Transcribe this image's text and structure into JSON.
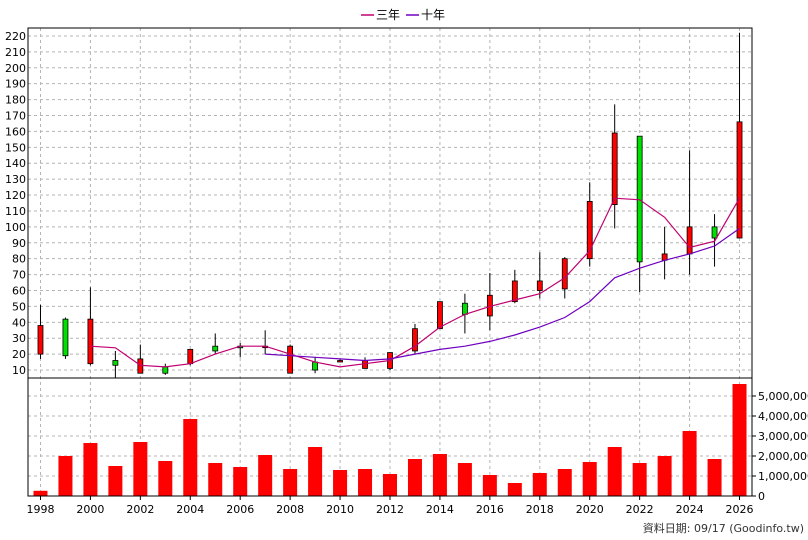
{
  "legend": [
    {
      "name": "三年",
      "color": "#c00070"
    },
    {
      "name": "十年",
      "color": "#7000c0"
    }
  ],
  "source_label": "資料日期: 09/17  (Goodinfo.tw)",
  "chart_data": {
    "type": "candlestick+bar",
    "x_ticks": [
      "1998",
      "2000",
      "2002",
      "2004",
      "2006",
      "2008",
      "2010",
      "2012",
      "2014",
      "2016",
      "2018",
      "2020",
      "2022",
      "2024",
      "2026"
    ],
    "price_axis": {
      "ylim": [
        5,
        225
      ],
      "ticks": [
        10,
        20,
        30,
        40,
        50,
        60,
        70,
        80,
        90,
        100,
        110,
        120,
        130,
        140,
        150,
        160,
        170,
        180,
        190,
        200,
        210,
        220
      ],
      "side": "left"
    },
    "volume_axis": {
      "ylim": [
        0,
        5900000
      ],
      "ticks": [
        0,
        1000000,
        2000000,
        3000000,
        4000000,
        5000000
      ],
      "tick_labels": [
        "0",
        "1,000,000",
        "2,000,000",
        "3,000,000",
        "4,000,000",
        "5,000,000"
      ],
      "side": "right"
    },
    "grid": true,
    "candles": [
      {
        "year": 1998,
        "open": 20,
        "high": 51,
        "low": 17,
        "close": 38
      },
      {
        "year": 1999,
        "open": 42,
        "high": 43,
        "low": 17,
        "close": 19
      },
      {
        "year": 2000,
        "open": 14,
        "high": 62,
        "low": 13,
        "close": 42
      },
      {
        "year": 2001,
        "open": 16,
        "high": 22,
        "low": 5,
        "close": 13
      },
      {
        "year": 2002,
        "open": 8,
        "high": 26,
        "low": 8,
        "close": 17
      },
      {
        "year": 2003,
        "open": 12,
        "high": 14,
        "low": 7,
        "close": 8
      },
      {
        "year": 2004,
        "open": 14,
        "high": 23,
        "low": 13,
        "close": 23
      },
      {
        "year": 2005,
        "open": 25,
        "high": 33,
        "low": 20,
        "close": 22
      },
      {
        "year": 2006,
        "open": 25,
        "high": 27,
        "low": 18,
        "close": 24
      },
      {
        "year": 2007,
        "open": 25,
        "high": 35,
        "low": 20,
        "close": 25
      },
      {
        "year": 2008,
        "open": 8,
        "high": 26,
        "low": 8,
        "close": 25
      },
      {
        "year": 2009,
        "open": 15,
        "high": 18,
        "low": 8,
        "close": 10
      },
      {
        "year": 2010,
        "open": 16,
        "high": 17,
        "low": 15,
        "close": 16
      },
      {
        "year": 2011,
        "open": 11,
        "high": 18,
        "low": 11,
        "close": 16
      },
      {
        "year": 2012,
        "open": 11,
        "high": 21,
        "low": 10,
        "close": 21
      },
      {
        "year": 2013,
        "open": 22,
        "high": 39,
        "low": 20,
        "close": 36
      },
      {
        "year": 2014,
        "open": 36,
        "high": 53,
        "low": 36,
        "close": 53
      },
      {
        "year": 2015,
        "open": 52,
        "high": 58,
        "low": 33,
        "close": 45
      },
      {
        "year": 2016,
        "open": 44,
        "high": 71,
        "low": 35,
        "close": 57
      },
      {
        "year": 2017,
        "open": 53,
        "high": 73,
        "low": 52,
        "close": 66
      },
      {
        "year": 2018,
        "open": 60,
        "high": 84,
        "low": 55,
        "close": 66
      },
      {
        "year": 2019,
        "open": 61,
        "high": 81,
        "low": 55,
        "close": 80
      },
      {
        "year": 2020,
        "open": 80,
        "high": 128,
        "low": 75,
        "close": 116
      },
      {
        "year": 2021,
        "open": 114,
        "high": 177,
        "low": 99,
        "close": 159
      },
      {
        "year": 2022,
        "open": 157,
        "high": 157,
        "low": 59,
        "close": 78
      },
      {
        "year": 2023,
        "open": 79,
        "high": 100,
        "low": 67,
        "close": 83
      },
      {
        "year": 2024,
        "open": 83,
        "high": 148,
        "low": 70,
        "close": 100
      },
      {
        "year": 2025,
        "open": 100,
        "high": 108,
        "low": 75,
        "close": 93
      },
      {
        "year": 2026,
        "open": 93,
        "high": 222,
        "low": 93,
        "close": 166
      }
    ],
    "volume": [
      {
        "year": 1998,
        "value": 260000
      },
      {
        "year": 1999,
        "value": 2000000
      },
      {
        "year": 2000,
        "value": 2650000
      },
      {
        "year": 2001,
        "value": 1500000
      },
      {
        "year": 2002,
        "value": 2700000
      },
      {
        "year": 2003,
        "value": 1750000
      },
      {
        "year": 2004,
        "value": 3850000
      },
      {
        "year": 2005,
        "value": 1650000
      },
      {
        "year": 2006,
        "value": 1450000
      },
      {
        "year": 2007,
        "value": 2050000
      },
      {
        "year": 2008,
        "value": 1350000
      },
      {
        "year": 2009,
        "value": 2450000
      },
      {
        "year": 2010,
        "value": 1300000
      },
      {
        "year": 2011,
        "value": 1350000
      },
      {
        "year": 2012,
        "value": 1100000
      },
      {
        "year": 2013,
        "value": 1850000
      },
      {
        "year": 2014,
        "value": 2100000
      },
      {
        "year": 2015,
        "value": 1650000
      },
      {
        "year": 2016,
        "value": 1050000
      },
      {
        "year": 2017,
        "value": 650000
      },
      {
        "year": 2018,
        "value": 1150000
      },
      {
        "year": 2019,
        "value": 1350000
      },
      {
        "year": 2020,
        "value": 1700000
      },
      {
        "year": 2021,
        "value": 2450000
      },
      {
        "year": 2022,
        "value": 1650000
      },
      {
        "year": 2023,
        "value": 2000000
      },
      {
        "year": 2024,
        "value": 3250000
      },
      {
        "year": 2025,
        "value": 1850000
      },
      {
        "year": 2026,
        "value": 5600000
      }
    ],
    "series": [
      {
        "name": "三年",
        "color": "#c00070",
        "points": [
          [
            2000,
            25
          ],
          [
            2001,
            24
          ],
          [
            2002,
            13
          ],
          [
            2003,
            12
          ],
          [
            2004,
            14
          ],
          [
            2005,
            20
          ],
          [
            2006,
            25
          ],
          [
            2007,
            25
          ],
          [
            2008,
            20
          ],
          [
            2009,
            15
          ],
          [
            2010,
            12
          ],
          [
            2011,
            14
          ],
          [
            2012,
            16
          ],
          [
            2013,
            25
          ],
          [
            2014,
            37
          ],
          [
            2015,
            45
          ],
          [
            2016,
            50
          ],
          [
            2017,
            54
          ],
          [
            2018,
            58
          ],
          [
            2019,
            68
          ],
          [
            2020,
            85
          ],
          [
            2021,
            118
          ],
          [
            2022,
            117
          ],
          [
            2023,
            106
          ],
          [
            2024,
            87
          ],
          [
            2025,
            91
          ],
          [
            2026,
            118
          ]
        ]
      },
      {
        "name": "十年",
        "color": "#7000c0",
        "points": [
          [
            2007,
            20
          ],
          [
            2008,
            19
          ],
          [
            2009,
            18
          ],
          [
            2010,
            17
          ],
          [
            2011,
            16
          ],
          [
            2012,
            17
          ],
          [
            2013,
            20
          ],
          [
            2014,
            23
          ],
          [
            2015,
            25
          ],
          [
            2016,
            28
          ],
          [
            2017,
            32
          ],
          [
            2018,
            37
          ],
          [
            2019,
            43
          ],
          [
            2020,
            53
          ],
          [
            2021,
            68
          ],
          [
            2022,
            74
          ],
          [
            2023,
            79
          ],
          [
            2024,
            83
          ],
          [
            2025,
            88
          ],
          [
            2026,
            99
          ]
        ]
      }
    ]
  }
}
